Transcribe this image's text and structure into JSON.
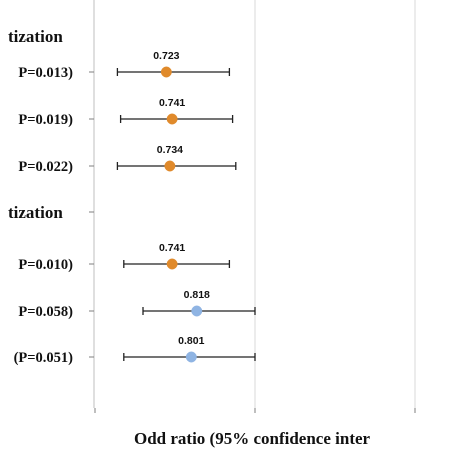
{
  "chart_data": {
    "type": "forest",
    "xlabel": "Odd ratio (95% confidence inter",
    "sections": [
      {
        "title": "tization",
        "rows": [
          0,
          1,
          2
        ]
      },
      {
        "title": "tization",
        "rows": [
          3,
          4,
          5
        ]
      }
    ],
    "rows": [
      {
        "label": "P=0.013)",
        "or": 0.723,
        "lo": 0.57,
        "hi": 0.92,
        "value_label": "0.723",
        "color": "#E08A2B"
      },
      {
        "label": "P=0.019)",
        "or": 0.741,
        "lo": 0.58,
        "hi": 0.93,
        "value_label": "0.741",
        "color": "#E08A2B"
      },
      {
        "label": "P=0.022)",
        "or": 0.734,
        "lo": 0.57,
        "hi": 0.94,
        "value_label": "0.734",
        "color": "#E08A2B"
      },
      {
        "label": "P=0.010)",
        "or": 0.741,
        "lo": 0.59,
        "hi": 0.92,
        "value_label": "0.741",
        "color": "#E08A2B"
      },
      {
        "label": "P=0.058)",
        "or": 0.818,
        "lo": 0.65,
        "hi": 1.0,
        "value_label": "0.818",
        "color": "#8FB4E3"
      },
      {
        "label": "(P=0.051)",
        "or": 0.801,
        "lo": 0.59,
        "hi": 1.0,
        "value_label": "0.801",
        "color": "#8FB4E3"
      }
    ],
    "x_gridlines": [
      1.0,
      1.5
    ],
    "x_range": [
      0.5,
      1.7
    ],
    "grid": true,
    "colors": {
      "point_primary": "#E08A2B",
      "point_secondary": "#8FB4E3",
      "ci_line": "#222222",
      "grid": "#d9d9d9"
    }
  }
}
